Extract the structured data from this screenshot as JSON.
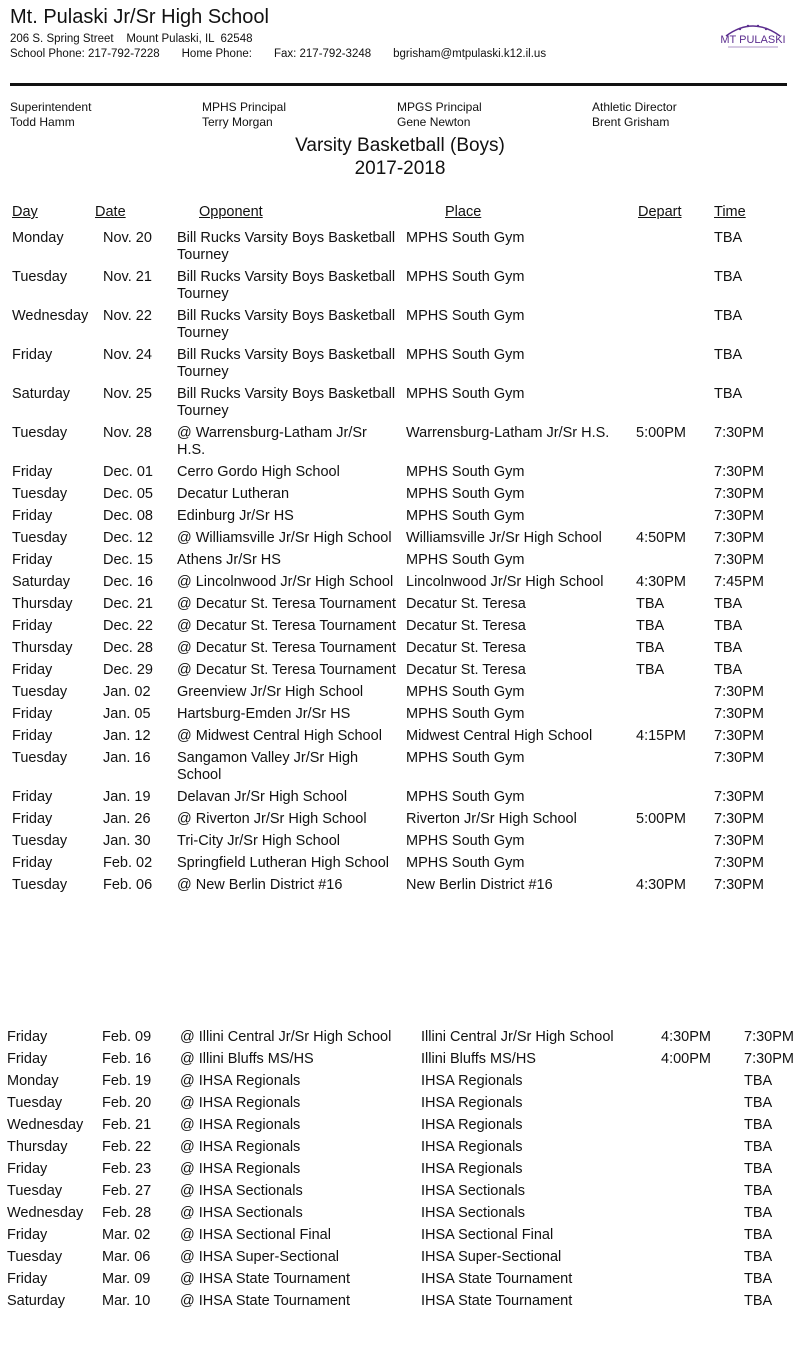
{
  "header": {
    "school": "Mt. Pulaski Jr/Sr High School",
    "address": "206 S. Spring Street    Mount Pulaski, IL  62548",
    "school_phone": "School Phone: 217-792-7228",
    "home_phone": "Home Phone:",
    "fax": "Fax: 217-792-3248",
    "email": "bgrisham@mtpulaski.k12.il.us",
    "logo_text": "MT PULASKI",
    "logo_color": "#5b2d8e"
  },
  "staff": [
    {
      "role": "Superintendent",
      "name": "Todd Hamm"
    },
    {
      "role": "MPHS Principal",
      "name": "Terry Morgan"
    },
    {
      "role": "MPGS Principal",
      "name": "Gene Newton"
    },
    {
      "role": "Athletic Director",
      "name": "Brent Grisham"
    }
  ],
  "title": "Varsity Basketball (Boys)",
  "season": "2017-2018",
  "columns": {
    "day": "Day",
    "date": "Date",
    "opponent": "Opponent",
    "place": "Place",
    "depart": "Depart",
    "time": "Time"
  },
  "schedule": [
    [
      "Monday",
      "Nov. 20",
      "Bill Rucks Varsity Boys Basketball Tourney",
      "MPHS South Gym",
      "",
      "TBA"
    ],
    [
      "Tuesday",
      "Nov. 21",
      "Bill Rucks Varsity Boys Basketball Tourney",
      "MPHS South Gym",
      "",
      "TBA"
    ],
    [
      "Wednesday",
      "Nov. 22",
      "Bill Rucks Varsity Boys Basketball Tourney",
      "MPHS South Gym",
      "",
      "TBA"
    ],
    [
      "Friday",
      "Nov. 24",
      "Bill Rucks Varsity Boys Basketball Tourney",
      "MPHS South Gym",
      "",
      "TBA"
    ],
    [
      "Saturday",
      "Nov. 25",
      "Bill Rucks Varsity Boys Basketball Tourney",
      "MPHS South Gym",
      "",
      "TBA"
    ],
    [
      "Tuesday",
      "Nov. 28",
      "@ Warrensburg-Latham Jr/Sr H.S.",
      "Warrensburg-Latham Jr/Sr H.S.",
      "5:00PM",
      "7:30PM"
    ],
    [
      "Friday",
      "Dec. 01",
      "Cerro Gordo High School",
      "MPHS South Gym",
      "",
      "7:30PM"
    ],
    [
      "Tuesday",
      "Dec. 05",
      "Decatur Lutheran",
      "MPHS South Gym",
      "",
      "7:30PM"
    ],
    [
      "Friday",
      "Dec. 08",
      "Edinburg Jr/Sr HS",
      "MPHS South Gym",
      "",
      "7:30PM"
    ],
    [
      "Tuesday",
      "Dec. 12",
      "@ Williamsville Jr/Sr High School",
      "Williamsville Jr/Sr High School",
      "4:50PM",
      "7:30PM"
    ],
    [
      "Friday",
      "Dec. 15",
      "Athens Jr/Sr HS",
      "MPHS South Gym",
      "",
      "7:30PM"
    ],
    [
      "Saturday",
      "Dec. 16",
      "@ Lincolnwood Jr/Sr High School",
      "Lincolnwood Jr/Sr High School",
      "4:30PM",
      "7:45PM"
    ],
    [
      "Thursday",
      "Dec. 21",
      "@ Decatur St. Teresa Tournament",
      "Decatur St. Teresa",
      "TBA",
      "TBA"
    ],
    [
      "Friday",
      "Dec. 22",
      "@ Decatur St. Teresa Tournament",
      "Decatur St. Teresa",
      "TBA",
      "TBA"
    ],
    [
      "Thursday",
      "Dec. 28",
      "@ Decatur St. Teresa Tournament",
      "Decatur St. Teresa",
      "TBA",
      "TBA"
    ],
    [
      "Friday",
      "Dec. 29",
      "@ Decatur St. Teresa Tournament",
      "Decatur St. Teresa",
      "TBA",
      "TBA"
    ],
    [
      "Tuesday",
      "Jan. 02",
      "Greenview Jr/Sr High School",
      "MPHS South Gym",
      "",
      "7:30PM"
    ],
    [
      "Friday",
      "Jan. 05",
      "Hartsburg-Emden Jr/Sr HS",
      "MPHS South Gym",
      "",
      "7:30PM"
    ],
    [
      "Friday",
      "Jan. 12",
      "@ Midwest Central High School",
      "Midwest Central High School",
      "4:15PM",
      "7:30PM"
    ],
    [
      "Tuesday",
      "Jan. 16",
      "Sangamon Valley Jr/Sr High School",
      "MPHS South Gym",
      "",
      "7:30PM"
    ],
    [
      "Friday",
      "Jan. 19",
      "Delavan Jr/Sr High School",
      "MPHS South Gym",
      "",
      "7:30PM"
    ],
    [
      "Friday",
      "Jan. 26",
      "@ Riverton Jr/Sr High School",
      "Riverton Jr/Sr High School",
      "5:00PM",
      "7:30PM"
    ],
    [
      "Tuesday",
      "Jan. 30",
      "Tri-City Jr/Sr High School",
      "MPHS South Gym",
      "",
      "7:30PM"
    ],
    [
      "Friday",
      "Feb. 02",
      "Springfield Lutheran High School",
      "MPHS South Gym",
      "",
      "7:30PM"
    ],
    [
      "Tuesday",
      "Feb. 06",
      "@ New Berlin District #16",
      "New Berlin District #16",
      "4:30PM",
      "7:30PM"
    ]
  ],
  "schedule_continued": [
    [
      "Friday",
      "Feb. 09",
      "@ Illini Central Jr/Sr High School",
      "Illini Central Jr/Sr High School",
      "4:30PM",
      "7:30PM"
    ],
    [
      "Friday",
      "Feb. 16",
      "@ Illini Bluffs MS/HS",
      "Illini Bluffs MS/HS",
      "4:00PM",
      "7:30PM"
    ],
    [
      "Monday",
      "Feb. 19",
      "@ IHSA Regionals",
      "IHSA Regionals",
      "",
      "TBA"
    ],
    [
      "Tuesday",
      "Feb. 20",
      "@ IHSA Regionals",
      "IHSA Regionals",
      "",
      "TBA"
    ],
    [
      "Wednesday",
      "Feb. 21",
      "@ IHSA Regionals",
      "IHSA Regionals",
      "",
      "TBA"
    ],
    [
      "Thursday",
      "Feb. 22",
      "@ IHSA Regionals",
      "IHSA Regionals",
      "",
      "TBA"
    ],
    [
      "Friday",
      "Feb. 23",
      "@ IHSA Regionals",
      "IHSA Regionals",
      "",
      "TBA"
    ],
    [
      "Tuesday",
      "Feb. 27",
      "@ IHSA Sectionals",
      "IHSA Sectionals",
      "",
      "TBA"
    ],
    [
      "Wednesday",
      "Feb. 28",
      "@ IHSA Sectionals",
      "IHSA Sectionals",
      "",
      "TBA"
    ],
    [
      "Friday",
      "Mar. 02",
      "@ IHSA Sectional Final",
      "IHSA Sectional Final",
      "",
      "TBA"
    ],
    [
      "Tuesday",
      "Mar. 06",
      "@ IHSA Super-Sectional",
      "IHSA Super-Sectional",
      "",
      "TBA"
    ],
    [
      "Friday",
      "Mar. 09",
      "@ IHSA State Tournament",
      "IHSA State Tournament",
      "",
      "TBA"
    ],
    [
      "Saturday",
      "Mar. 10",
      "@ IHSA State Tournament",
      "IHSA State Tournament",
      "",
      "TBA"
    ]
  ]
}
